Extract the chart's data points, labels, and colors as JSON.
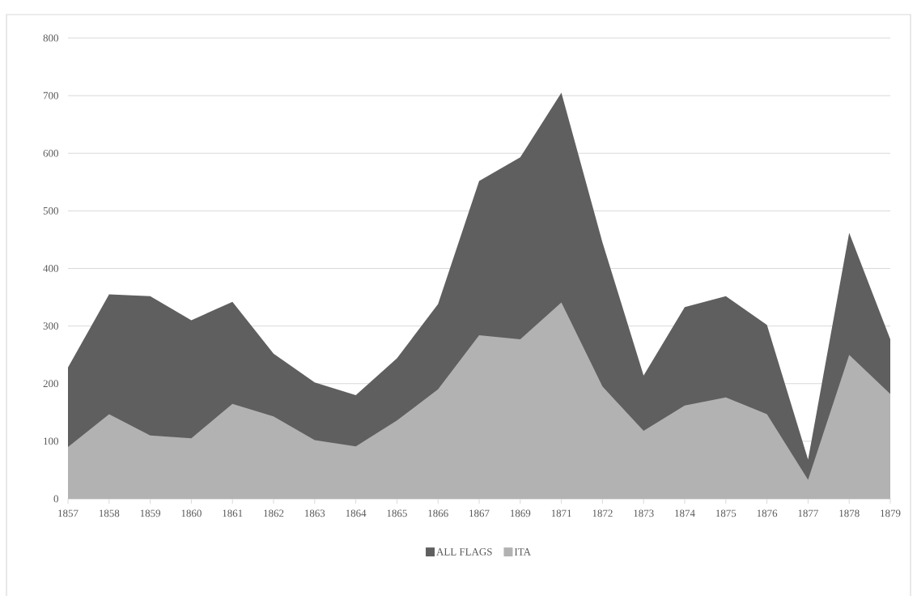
{
  "chart_data": {
    "type": "area",
    "categories": [
      "1857",
      "1858",
      "1859",
      "1860",
      "1861",
      "1862",
      "1863",
      "1864",
      "1865",
      "1866",
      "1867",
      "1869",
      "1871",
      "1872",
      "1873",
      "1874",
      "1875",
      "1876",
      "1877",
      "1878",
      "1879"
    ],
    "series": [
      {
        "name": "ALL FLAGS",
        "color": "#5f5f5f",
        "values": [
          228,
          355,
          352,
          310,
          342,
          252,
          202,
          180,
          244,
          338,
          552,
          593,
          705,
          445,
          214,
          333,
          352,
          302,
          68,
          462,
          277
        ]
      },
      {
        "name": "ITA",
        "color": "#b2b2b2",
        "values": [
          90,
          147,
          110,
          105,
          165,
          143,
          102,
          91,
          136,
          190,
          284,
          277,
          341,
          195,
          118,
          162,
          176,
          147,
          33,
          250,
          182
        ]
      }
    ],
    "ylim": [
      0,
      800
    ],
    "yticks": [
      0,
      100,
      200,
      300,
      400,
      500,
      600,
      700,
      800
    ],
    "grid": "y",
    "legend": "bottom"
  }
}
